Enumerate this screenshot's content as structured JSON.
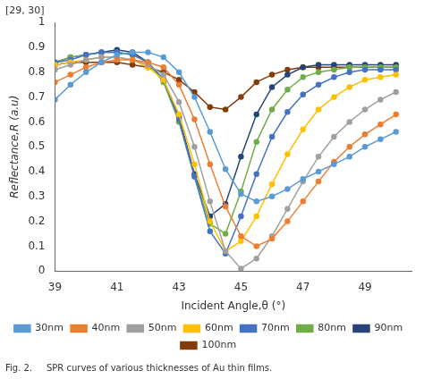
{
  "chart_data": {
    "type": "line",
    "header": "[29, 30]",
    "caption": "Fig. 2.     SPR curves of various thicknesses of Au thin films.",
    "xlabel": "Incident Angle,θ (°)",
    "ylabel": "Reflectance,R (a.u)",
    "xlim": [
      39,
      50.5
    ],
    "ylim": [
      0,
      1.0
    ],
    "xticks": [
      39,
      41,
      43,
      45,
      47,
      49
    ],
    "yticks": [
      0,
      0.1,
      0.2,
      0.3,
      0.4,
      0.5,
      0.6,
      0.7,
      0.8,
      0.9,
      1
    ],
    "grid": false,
    "legend": "bottom",
    "marker": "circle",
    "x": [
      39.0,
      39.5,
      40.0,
      40.5,
      41.0,
      41.5,
      42.0,
      42.5,
      43.0,
      43.5,
      44.0,
      44.5,
      45.0,
      45.5,
      46.0,
      46.5,
      47.0,
      47.5,
      48.0,
      48.5,
      49.0,
      49.5,
      50.0
    ],
    "series": [
      {
        "name": "30nm",
        "color": "#5B9BD5",
        "values": [
          0.69,
          0.75,
          0.8,
          0.84,
          0.87,
          0.88,
          0.88,
          0.86,
          0.8,
          0.7,
          0.56,
          0.41,
          0.31,
          0.28,
          0.3,
          0.33,
          0.37,
          0.4,
          0.43,
          0.46,
          0.5,
          0.53,
          0.56
        ]
      },
      {
        "name": "40nm",
        "color": "#ED7D31",
        "values": [
          0.76,
          0.79,
          0.82,
          0.84,
          0.85,
          0.85,
          0.84,
          0.82,
          0.75,
          0.61,
          0.43,
          0.26,
          0.14,
          0.1,
          0.13,
          0.2,
          0.28,
          0.36,
          0.44,
          0.5,
          0.55,
          0.59,
          0.63
        ]
      },
      {
        "name": "50nm",
        "color": "#A0A0A0",
        "values": [
          0.81,
          0.83,
          0.85,
          0.86,
          0.86,
          0.85,
          0.83,
          0.79,
          0.68,
          0.5,
          0.28,
          0.08,
          0.01,
          0.05,
          0.14,
          0.25,
          0.36,
          0.46,
          0.54,
          0.6,
          0.65,
          0.69,
          0.72
        ]
      },
      {
        "name": "60nm",
        "color": "#FFC000",
        "values": [
          0.83,
          0.84,
          0.85,
          0.86,
          0.86,
          0.85,
          0.82,
          0.77,
          0.63,
          0.43,
          0.2,
          0.08,
          0.12,
          0.22,
          0.35,
          0.47,
          0.57,
          0.65,
          0.7,
          0.74,
          0.77,
          0.78,
          0.79
        ]
      },
      {
        "name": "70nm",
        "color": "#4472C4",
        "values": [
          0.84,
          0.85,
          0.87,
          0.88,
          0.88,
          0.87,
          0.84,
          0.77,
          0.61,
          0.38,
          0.16,
          0.07,
          0.22,
          0.39,
          0.54,
          0.64,
          0.71,
          0.75,
          0.78,
          0.8,
          0.81,
          0.81,
          0.81
        ]
      },
      {
        "name": "80nm",
        "color": "#70AD47",
        "values": [
          0.84,
          0.86,
          0.87,
          0.88,
          0.88,
          0.87,
          0.84,
          0.76,
          0.6,
          0.38,
          0.19,
          0.15,
          0.32,
          0.52,
          0.65,
          0.73,
          0.78,
          0.8,
          0.81,
          0.82,
          0.82,
          0.82,
          0.82
        ]
      },
      {
        "name": "90nm",
        "color": "#264478",
        "values": [
          0.84,
          0.86,
          0.87,
          0.88,
          0.89,
          0.88,
          0.84,
          0.77,
          0.62,
          0.39,
          0.22,
          0.27,
          0.46,
          0.63,
          0.74,
          0.79,
          0.82,
          0.83,
          0.83,
          0.83,
          0.83,
          0.83,
          0.83
        ]
      },
      {
        "name": "100nm",
        "color": "#843C0C",
        "values": [
          0.83,
          0.84,
          0.84,
          0.84,
          0.84,
          0.83,
          0.82,
          0.8,
          0.77,
          0.72,
          0.66,
          0.65,
          0.7,
          0.76,
          0.79,
          0.81,
          0.82,
          0.82,
          0.82,
          0.82,
          0.82,
          0.82,
          0.82
        ]
      }
    ]
  }
}
